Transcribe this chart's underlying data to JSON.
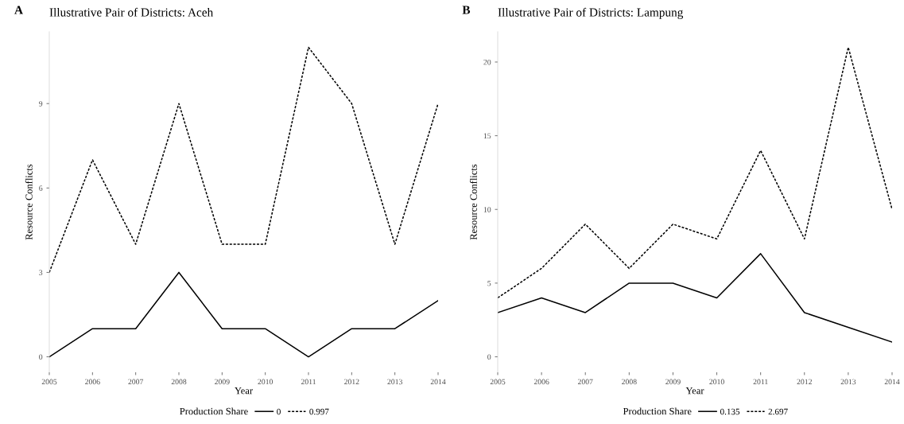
{
  "chart_data": [
    {
      "type": "line",
      "title": "Illustrative Pair of Districts: Aceh",
      "annotations": [
        "A"
      ],
      "xlabel": "Year",
      "ylabel": "Resource Conflicts",
      "legend_title": "Production Share",
      "legend": "bottom",
      "grid": false,
      "marker": "none",
      "x": [
        2005,
        2006,
        2007,
        2008,
        2009,
        2010,
        2011,
        2012,
        2013,
        2014
      ],
      "series": [
        {
          "name": "0",
          "color": "#000000",
          "line_style": "solid",
          "values": [
            0,
            1,
            1,
            3,
            1,
            1,
            0,
            1,
            1,
            2
          ]
        },
        {
          "name": "0.997",
          "color": "#000000",
          "line_style": "dotted",
          "values": [
            3,
            7,
            4,
            9,
            4,
            4,
            11,
            9,
            4,
            9
          ]
        }
      ],
      "xlim": [
        2005,
        2014
      ],
      "xticks": [
        2005,
        2006,
        2007,
        2008,
        2009,
        2010,
        2011,
        2012,
        2013,
        2014
      ],
      "ylim": [
        -0.55,
        11.55
      ],
      "yticks": [
        0,
        3,
        6,
        9
      ]
    },
    {
      "type": "line",
      "title": "Illustrative Pair of Districts: Lampung",
      "annotations": [
        "B"
      ],
      "xlabel": "Year",
      "ylabel": "Resource Conflicts",
      "legend_title": "Production Share",
      "legend": "bottom",
      "grid": false,
      "marker": "none",
      "x": [
        2005,
        2006,
        2007,
        2008,
        2009,
        2010,
        2011,
        2012,
        2013,
        2014
      ],
      "series": [
        {
          "name": "0.135",
          "color": "#000000",
          "line_style": "solid",
          "values": [
            3,
            4,
            3,
            5,
            5,
            4,
            7,
            3,
            2,
            1
          ]
        },
        {
          "name": "2.697",
          "color": "#000000",
          "line_style": "dotted",
          "values": [
            4,
            6,
            9,
            6,
            9,
            8,
            14,
            8,
            21,
            10
          ]
        }
      ],
      "xlim": [
        2005,
        2014
      ],
      "xticks": [
        2005,
        2006,
        2007,
        2008,
        2009,
        2010,
        2011,
        2012,
        2013,
        2014
      ],
      "ylim": [
        -1.05,
        22.05
      ],
      "yticks": [
        0,
        5,
        10,
        15,
        20
      ]
    }
  ]
}
